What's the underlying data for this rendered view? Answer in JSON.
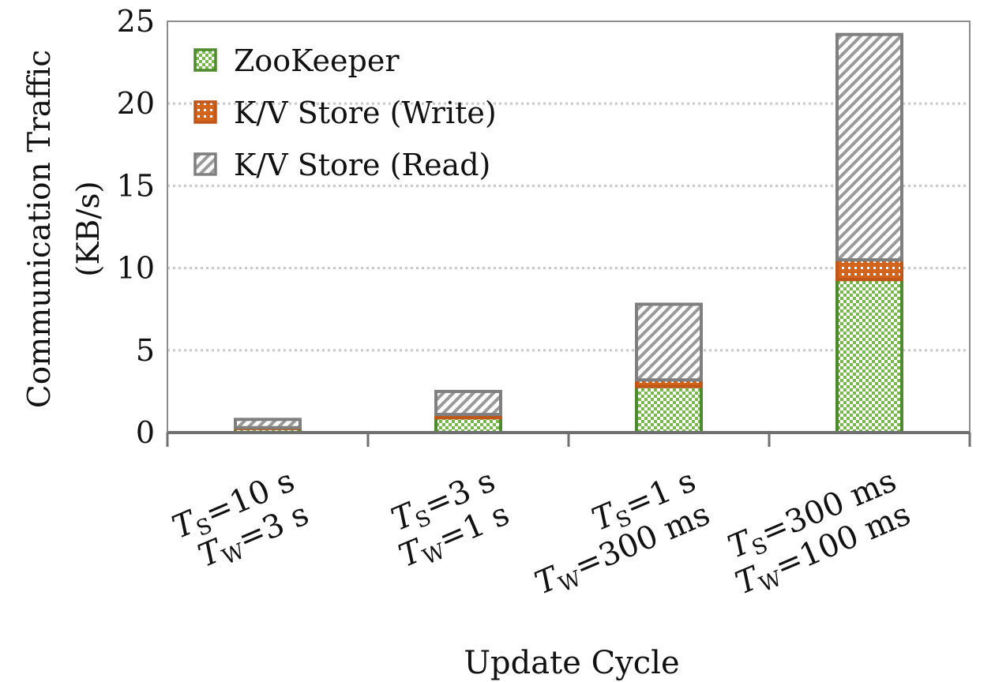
{
  "chart_data": {
    "type": "bar",
    "stacked": true,
    "title": "",
    "xlabel": "Update Cycle",
    "ylabel_lines": [
      "Communication Traffic",
      "(KB/s)"
    ],
    "ylim": [
      0,
      25
    ],
    "yticks": [
      0,
      5,
      10,
      15,
      20,
      25
    ],
    "grid": "horizontal-dotted",
    "legend_position": "top-left",
    "categories": [
      {
        "ts_value": "10 s",
        "tw_value": "3 s"
      },
      {
        "ts_value": "3 s",
        "tw_value": "1 s"
      },
      {
        "ts_value": "1 s",
        "tw_value": "300 ms"
      },
      {
        "ts_value": "300 ms",
        "tw_value": "100 ms"
      }
    ],
    "category_symbols": {
      "ts_main": "T",
      "ts_sub": "S",
      "tw_main": "T",
      "tw_sub": "W",
      "eq": "="
    },
    "series": [
      {
        "name": "ZooKeeper",
        "values": [
          0.25,
          0.9,
          2.8,
          9.3
        ],
        "fill": "#78b74a",
        "stroke": "#4e8a2e",
        "pattern": "checker"
      },
      {
        "name": "K/V Store (Write)",
        "values": [
          0.05,
          0.2,
          0.4,
          1.2
        ],
        "fill": "#d4641a",
        "stroke": "#c0561a",
        "pattern": "dots"
      },
      {
        "name": "K/V Store (Read)",
        "values": [
          0.5,
          1.4,
          4.6,
          13.7
        ],
        "fill": "#8a8a8a",
        "stroke": "#7f7f7f",
        "pattern": "diagonal"
      }
    ]
  }
}
